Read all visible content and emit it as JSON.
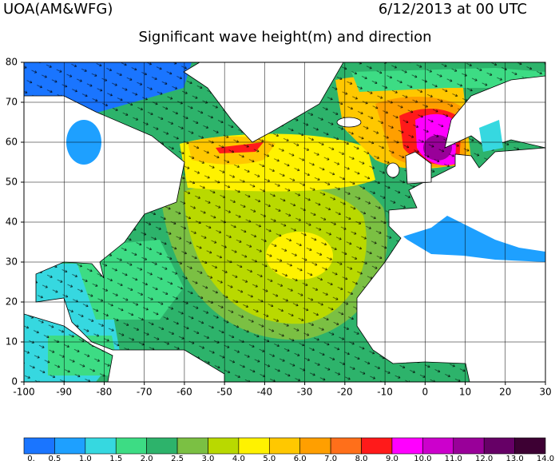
{
  "header": {
    "left": "UOA(AM&WFG)",
    "right": "6/12/2013 at 00 UTC"
  },
  "title": "Significant wave height(m) and direction",
  "map": {
    "xlim": [
      -100,
      30
    ],
    "ylim": [
      0,
      80
    ],
    "xticks": [
      -100,
      -90,
      -80,
      -70,
      -60,
      -50,
      -40,
      -30,
      -20,
      -10,
      0,
      10,
      20,
      30
    ],
    "yticks": [
      0,
      10,
      20,
      30,
      40,
      50,
      60,
      70,
      80
    ],
    "grid": true
  },
  "colorbar": {
    "levels": [
      {
        "value": 0,
        "label": "0."
      },
      {
        "value": 0.5,
        "label": "0.5"
      },
      {
        "value": 1,
        "label": "1.0"
      },
      {
        "value": 1.5,
        "label": "1.5"
      },
      {
        "value": 2,
        "label": "2.0"
      },
      {
        "value": 2.5,
        "label": "2.5"
      },
      {
        "value": 3,
        "label": "3.0"
      },
      {
        "value": 4,
        "label": "4.0"
      },
      {
        "value": 5,
        "label": "5.0"
      },
      {
        "value": 6,
        "label": "6.0"
      },
      {
        "value": 7,
        "label": "7.0"
      },
      {
        "value": 8,
        "label": "8.0"
      },
      {
        "value": 9,
        "label": "9.0"
      },
      {
        "value": 10,
        "label": "10.0"
      },
      {
        "value": 11,
        "label": "11.0"
      },
      {
        "value": 12,
        "label": "12.0"
      },
      {
        "value": 13,
        "label": "13.0"
      },
      {
        "value": 14,
        "label": "14.0"
      }
    ],
    "colors": [
      "#1a75ff",
      "#1ea0ff",
      "#36d8e0",
      "#3ddc84",
      "#2db36b",
      "#7bc043",
      "#b9d900",
      "#fff200",
      "#ffc800",
      "#ff9f00",
      "#ff6f1a",
      "#ff1a1a",
      "#ff00ff",
      "#cc00cc",
      "#990099",
      "#660066",
      "#3d0033"
    ]
  }
}
